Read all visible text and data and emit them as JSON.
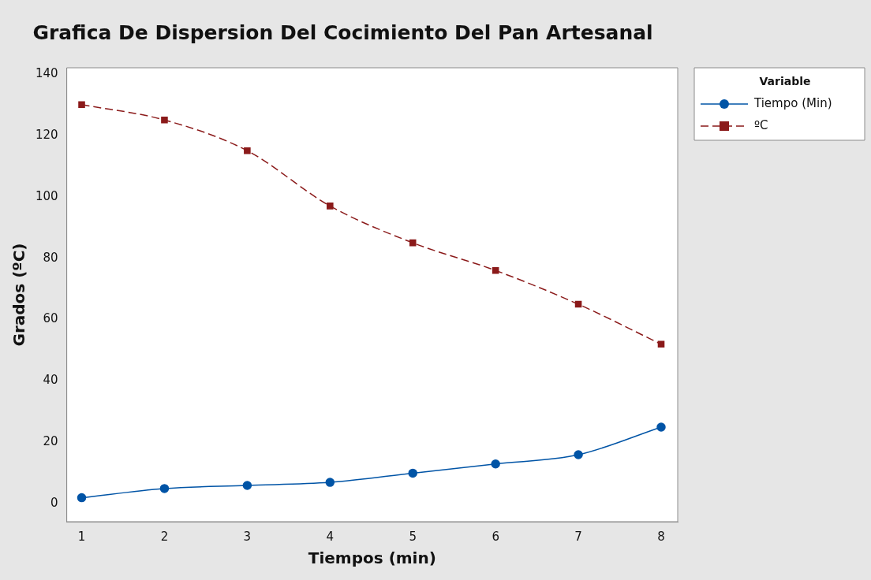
{
  "chart_data": {
    "type": "line",
    "title": "Grafica De Dispersion Del Cocimiento Del Pan Artesanal",
    "xlabel": "Tiempos (min)",
    "ylabel": "Grados (ºC)",
    "legend_title": "Variable",
    "x": [
      1,
      2,
      3,
      4,
      5,
      6,
      7,
      8
    ],
    "series": [
      {
        "name": "Tiempo (Min)",
        "color": "#0054a6",
        "values": [
          2,
          5,
          6,
          7,
          10,
          13,
          16,
          25
        ],
        "marker": "circle",
        "line_style": "solid"
      },
      {
        "name": "ºC",
        "color": "#8b1a1a",
        "values": [
          130,
          125,
          115,
          97,
          85,
          76,
          65,
          52
        ],
        "marker": "square",
        "line_style": "dashed"
      }
    ],
    "xlim": [
      0.82,
      8.2
    ],
    "xticks": [
      1,
      2,
      3,
      4,
      5,
      6,
      7,
      8
    ],
    "ylim": [
      -5.8,
      142
    ],
    "yticks": [
      0,
      20,
      40,
      60,
      80,
      100,
      120,
      140
    ],
    "grid": false,
    "legend": "top right"
  }
}
